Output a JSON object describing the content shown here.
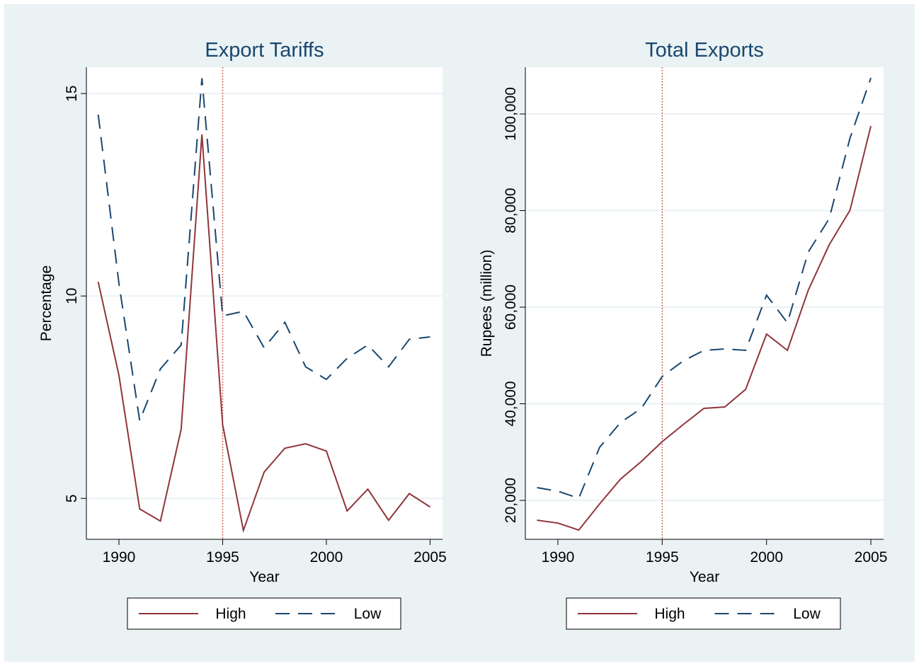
{
  "chart_data": [
    {
      "type": "line",
      "title": "Export Tariffs",
      "x_label": "Year",
      "y_label": "Percentage",
      "x": [
        1989,
        1990,
        1991,
        1992,
        1993,
        1994,
        1995,
        1996,
        1997,
        1998,
        1999,
        2000,
        2001,
        2002,
        2003,
        2004,
        2005
      ],
      "series": [
        {
          "name": "High",
          "color": "#90353b",
          "style": "solid",
          "values": [
            10.35,
            8.04,
            4.74,
            4.44,
            6.71,
            13.99,
            6.82,
            4.21,
            5.65,
            6.24,
            6.35,
            6.17,
            4.69,
            5.23,
            4.46,
            5.12,
            4.79
          ]
        },
        {
          "name": "Low",
          "color": "#1a476f",
          "style": "dashed",
          "values": [
            14.48,
            10.31,
            6.92,
            8.2,
            8.79,
            15.38,
            9.51,
            9.62,
            8.72,
            9.35,
            8.25,
            7.94,
            8.46,
            8.79,
            8.25,
            8.93,
            8.99
          ]
        }
      ],
      "xlim": [
        1988.43,
        2005.6
      ],
      "ylim": [
        3.99,
        15.65
      ],
      "xticks": [
        1990,
        1995,
        2000,
        2005
      ],
      "yticks": [
        5,
        10,
        15
      ],
      "vline": 1995,
      "vline_color": "#c0392b",
      "grid": true,
      "legend": "bottom"
    },
    {
      "type": "line",
      "title": "Total Exports",
      "x_label": "Year",
      "y_label": "Rupees (million)",
      "x": [
        1989,
        1990,
        1991,
        1992,
        1993,
        1994,
        1995,
        1996,
        1997,
        1998,
        1999,
        2000,
        2001,
        2002,
        2003,
        2004,
        2005
      ],
      "series": [
        {
          "name": "High",
          "color": "#90353b",
          "style": "solid",
          "values": [
            15900,
            15300,
            13850,
            19270,
            24400,
            28060,
            32160,
            35680,
            39050,
            39340,
            43000,
            54430,
            51060,
            63510,
            72890,
            80070,
            97500
          ]
        },
        {
          "name": "Low",
          "color": "#1a476f",
          "style": "dashed",
          "values": [
            22640,
            21900,
            20440,
            30990,
            36120,
            39050,
            45640,
            48860,
            51060,
            51350,
            51060,
            62490,
            56770,
            71420,
            78310,
            95010,
            107460
          ]
        }
      ],
      "xlim": [
        1988.44,
        2005.61
      ],
      "ylim": [
        11940,
        109670
      ],
      "xticks": [
        1990,
        1995,
        2000,
        2005
      ],
      "yticks": [
        {
          "value": 20000,
          "label": "20,000"
        },
        {
          "value": 40000,
          "label": "40,000"
        },
        {
          "value": 60000,
          "label": "60,000"
        },
        {
          "value": 80000,
          "label": "80,000"
        },
        {
          "value": 100000,
          "label": "100,000"
        }
      ],
      "vline": 1995,
      "vline_color": "#c0392b",
      "grid": true,
      "legend": "bottom"
    }
  ]
}
